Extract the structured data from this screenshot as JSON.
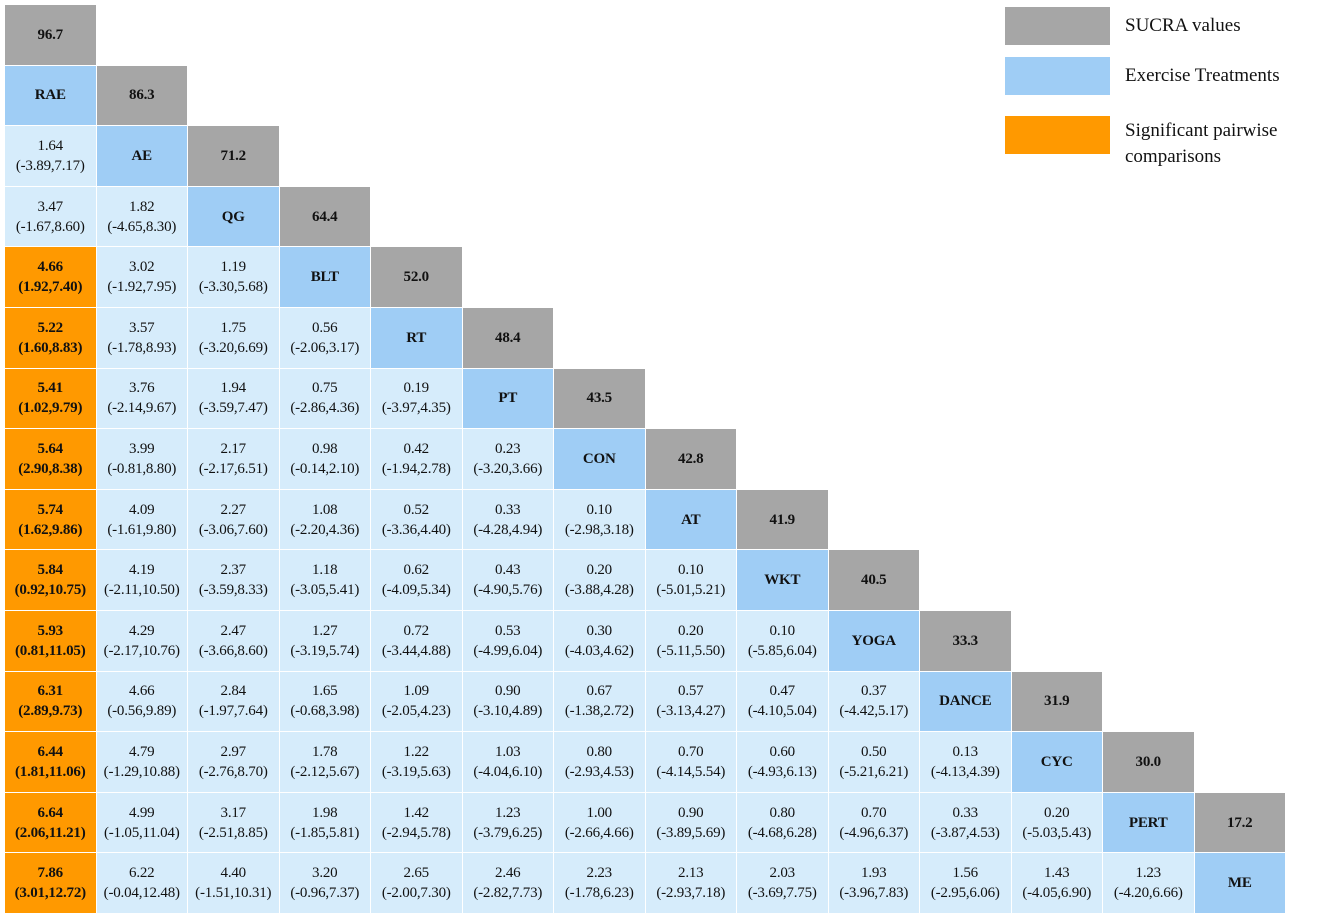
{
  "legend": [
    "SUCRA values",
    "Exercise Treatments",
    "Significant pairwise comparisons"
  ],
  "treatments": [
    {
      "name": "RAE",
      "sucra": "96.7"
    },
    {
      "name": "AE",
      "sucra": "86.3"
    },
    {
      "name": "QG",
      "sucra": "71.2"
    },
    {
      "name": "BLT",
      "sucra": "64.4"
    },
    {
      "name": "RT",
      "sucra": "52.0"
    },
    {
      "name": "PT",
      "sucra": "48.4"
    },
    {
      "name": "CON",
      "sucra": "43.5"
    },
    {
      "name": "AT",
      "sucra": "42.8"
    },
    {
      "name": "WKT",
      "sucra": "41.9"
    },
    {
      "name": "YOGA",
      "sucra": "40.5"
    },
    {
      "name": "DANCE",
      "sucra": "33.3"
    },
    {
      "name": "CYC",
      "sucra": "31.9"
    },
    {
      "name": "PERT",
      "sucra": "30.0"
    },
    {
      "name": "ME",
      "sucra": "17.2"
    }
  ],
  "comparisons": [
    {
      "cells": [
        [
          "1.64",
          "(-3.89,7.17)"
        ]
      ],
      "significant": []
    },
    {
      "cells": [
        [
          "3.47",
          "(-1.67,8.60)"
        ],
        [
          "1.82",
          "(-4.65,8.30)"
        ]
      ],
      "significant": []
    },
    {
      "cells": [
        [
          "4.66",
          "(1.92,7.40)"
        ],
        [
          "3.02",
          "(-1.92,7.95)"
        ],
        [
          "1.19",
          "(-3.30,5.68)"
        ]
      ],
      "significant": [
        0
      ]
    },
    {
      "cells": [
        [
          "5.22",
          "(1.60,8.83)"
        ],
        [
          "3.57",
          "(-1.78,8.93)"
        ],
        [
          "1.75",
          "(-3.20,6.69)"
        ],
        [
          "0.56",
          "(-2.06,3.17)"
        ]
      ],
      "significant": [
        0
      ]
    },
    {
      "cells": [
        [
          "5.41",
          "(1.02,9.79)"
        ],
        [
          "3.76",
          "(-2.14,9.67)"
        ],
        [
          "1.94",
          "(-3.59,7.47)"
        ],
        [
          "0.75",
          "(-2.86,4.36)"
        ],
        [
          "0.19",
          "(-3.97,4.35)"
        ]
      ],
      "significant": [
        0
      ]
    },
    {
      "cells": [
        [
          "5.64",
          "(2.90,8.38)"
        ],
        [
          "3.99",
          "(-0.81,8.80)"
        ],
        [
          "2.17",
          "(-2.17,6.51)"
        ],
        [
          "0.98",
          "(-0.14,2.10)"
        ],
        [
          "0.42",
          "(-1.94,2.78)"
        ],
        [
          "0.23",
          "(-3.20,3.66)"
        ]
      ],
      "significant": [
        0
      ]
    },
    {
      "cells": [
        [
          "5.74",
          "(1.62,9.86)"
        ],
        [
          "4.09",
          "(-1.61,9.80)"
        ],
        [
          "2.27",
          "(-3.06,7.60)"
        ],
        [
          "1.08",
          "(-2.20,4.36)"
        ],
        [
          "0.52",
          "(-3.36,4.40)"
        ],
        [
          "0.33",
          "(-4.28,4.94)"
        ],
        [
          "0.10",
          "(-2.98,3.18)"
        ]
      ],
      "significant": [
        0
      ]
    },
    {
      "cells": [
        [
          "5.84",
          "(0.92,10.75)"
        ],
        [
          "4.19",
          "(-2.11,10.50)"
        ],
        [
          "2.37",
          "(-3.59,8.33)"
        ],
        [
          "1.18",
          "(-3.05,5.41)"
        ],
        [
          "0.62",
          "(-4.09,5.34)"
        ],
        [
          "0.43",
          "(-4.90,5.76)"
        ],
        [
          "0.20",
          "(-3.88,4.28)"
        ],
        [
          "0.10",
          "(-5.01,5.21)"
        ]
      ],
      "significant": [
        0
      ]
    },
    {
      "cells": [
        [
          "5.93",
          "(0.81,11.05)"
        ],
        [
          "4.29",
          "(-2.17,10.76)"
        ],
        [
          "2.47",
          "(-3.66,8.60)"
        ],
        [
          "1.27",
          "(-3.19,5.74)"
        ],
        [
          "0.72",
          "(-3.44,4.88)"
        ],
        [
          "0.53",
          "(-4.99,6.04)"
        ],
        [
          "0.30",
          "(-4.03,4.62)"
        ],
        [
          "0.20",
          "(-5.11,5.50)"
        ],
        [
          "0.10",
          "(-5.85,6.04)"
        ]
      ],
      "significant": [
        0
      ]
    },
    {
      "cells": [
        [
          "6.31",
          "(2.89,9.73)"
        ],
        [
          "4.66",
          "(-0.56,9.89)"
        ],
        [
          "2.84",
          "(-1.97,7.64)"
        ],
        [
          "1.65",
          "(-0.68,3.98)"
        ],
        [
          "1.09",
          "(-2.05,4.23)"
        ],
        [
          "0.90",
          "(-3.10,4.89)"
        ],
        [
          "0.67",
          "(-1.38,2.72)"
        ],
        [
          "0.57",
          "(-3.13,4.27)"
        ],
        [
          "0.47",
          "(-4.10,5.04)"
        ],
        [
          "0.37",
          "(-4.42,5.17)"
        ]
      ],
      "significant": [
        0
      ]
    },
    {
      "cells": [
        [
          "6.44",
          "(1.81,11.06)"
        ],
        [
          "4.79",
          "(-1.29,10.88)"
        ],
        [
          "2.97",
          "(-2.76,8.70)"
        ],
        [
          "1.78",
          "(-2.12,5.67)"
        ],
        [
          "1.22",
          "(-3.19,5.63)"
        ],
        [
          "1.03",
          "(-4.04,6.10)"
        ],
        [
          "0.80",
          "(-2.93,4.53)"
        ],
        [
          "0.70",
          "(-4.14,5.54)"
        ],
        [
          "0.60",
          "(-4.93,6.13)"
        ],
        [
          "0.50",
          "(-5.21,6.21)"
        ],
        [
          "0.13",
          "(-4.13,4.39)"
        ]
      ],
      "significant": [
        0
      ]
    },
    {
      "cells": [
        [
          "6.64",
          "(2.06,11.21)"
        ],
        [
          "4.99",
          "(-1.05,11.04)"
        ],
        [
          "3.17",
          "(-2.51,8.85)"
        ],
        [
          "1.98",
          "(-1.85,5.81)"
        ],
        [
          "1.42",
          "(-2.94,5.78)"
        ],
        [
          "1.23",
          "(-3.79,6.25)"
        ],
        [
          "1.00",
          "(-2.66,4.66)"
        ],
        [
          "0.90",
          "(-3.89,5.69)"
        ],
        [
          "0.80",
          "(-4.68,6.28)"
        ],
        [
          "0.70",
          "(-4.96,6.37)"
        ],
        [
          "0.33",
          "(-3.87,4.53)"
        ],
        [
          "0.20",
          "(-5.03,5.43)"
        ]
      ],
      "significant": [
        0
      ]
    },
    {
      "cells": [
        [
          "7.86",
          "(3.01,12.72)"
        ],
        [
          "6.22",
          "(-0.04,12.48)"
        ],
        [
          "4.40",
          "(-1.51,10.31)"
        ],
        [
          "3.20",
          "(-0.96,7.37)"
        ],
        [
          "2.65",
          "(-2.00,7.30)"
        ],
        [
          "2.46",
          "(-2.82,7.73)"
        ],
        [
          "2.23",
          "(-1.78,6.23)"
        ],
        [
          "2.13",
          "(-2.93,7.18)"
        ],
        [
          "2.03",
          "(-3.69,7.75)"
        ],
        [
          "1.93",
          "(-3.96,7.83)"
        ],
        [
          "1.56",
          "(-2.95,6.06)"
        ],
        [
          "1.43",
          "(-4.05,6.90)"
        ],
        [
          "1.23",
          "(-4.20,6.66)"
        ]
      ],
      "significant": [
        0
      ]
    }
  ]
}
